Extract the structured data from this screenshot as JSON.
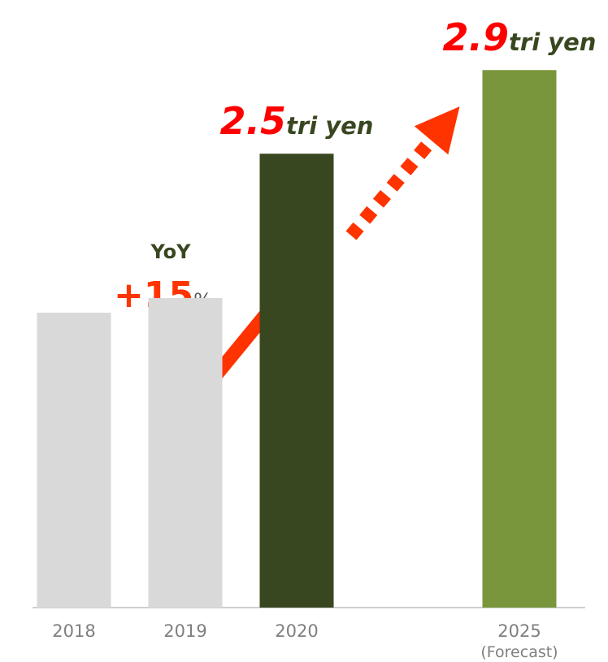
{
  "chart_data": {
    "type": "bar",
    "categories": [
      "2018",
      "2019",
      "2020",
      "2025"
    ],
    "category_notes": [
      null,
      null,
      null,
      "(Forecast)"
    ],
    "values": [
      1.74,
      1.81,
      2.5,
      2.9
    ],
    "value_labels": [
      null,
      null,
      "2.5",
      "2.9"
    ],
    "value_unit": "tri yen",
    "colors": [
      "#d9d9d9",
      "#d9d9d9",
      "#38471f",
      "#7a963c"
    ],
    "ylim": [
      0.33,
      3.2
    ],
    "annotation": {
      "title": "YoY",
      "text": "+15",
      "unit": "%"
    }
  }
}
